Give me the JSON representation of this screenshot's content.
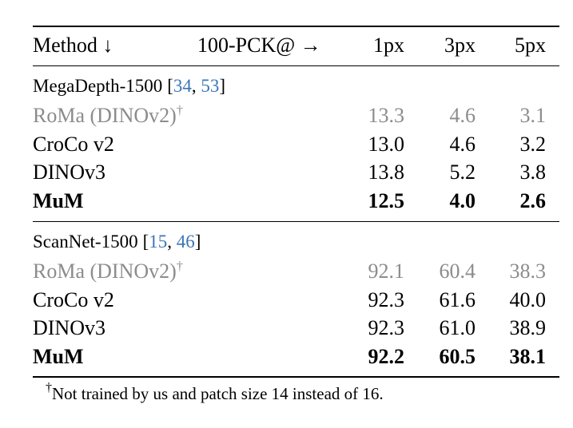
{
  "table": {
    "header": [
      "Method ↓",
      "100-PCK@ →",
      "1px",
      "3px",
      "5px"
    ],
    "ref_open": "[",
    "ref_sep": ", ",
    "ref_close": "]",
    "sections": [
      {
        "title": "MegaDepth-1500",
        "refs": [
          "34",
          "53"
        ],
        "rows": [
          {
            "method": "RoMa (DINOv2)",
            "mark": "†",
            "style": "gray",
            "values": [
              "13.3",
              "4.6",
              "3.1"
            ]
          },
          {
            "method": "CroCo v2",
            "style": "normal",
            "values": [
              "13.0",
              "4.6",
              "3.2"
            ]
          },
          {
            "method": "DINOv3",
            "style": "normal",
            "values": [
              "13.8",
              "5.2",
              "3.8"
            ]
          },
          {
            "method": "MuM",
            "style": "bold",
            "values": [
              "12.5",
              "4.0",
              "2.6"
            ]
          }
        ]
      },
      {
        "title": "ScanNet-1500",
        "refs": [
          "15",
          "46"
        ],
        "rows": [
          {
            "method": "RoMa (DINOv2)",
            "mark": "†",
            "style": "gray",
            "values": [
              "92.1",
              "60.4",
              "38.3"
            ]
          },
          {
            "method": "CroCo v2",
            "style": "normal",
            "values": [
              "92.3",
              "61.6",
              "40.0"
            ]
          },
          {
            "method": "DINOv3",
            "style": "normal",
            "values": [
              "92.3",
              "61.0",
              "38.9"
            ]
          },
          {
            "method": "MuM",
            "style": "bold",
            "values": [
              "92.2",
              "60.5",
              "38.1"
            ]
          }
        ]
      }
    ],
    "footnote": {
      "mark": "†",
      "text": "Not trained by us and patch size 14 instead of 16."
    }
  }
}
